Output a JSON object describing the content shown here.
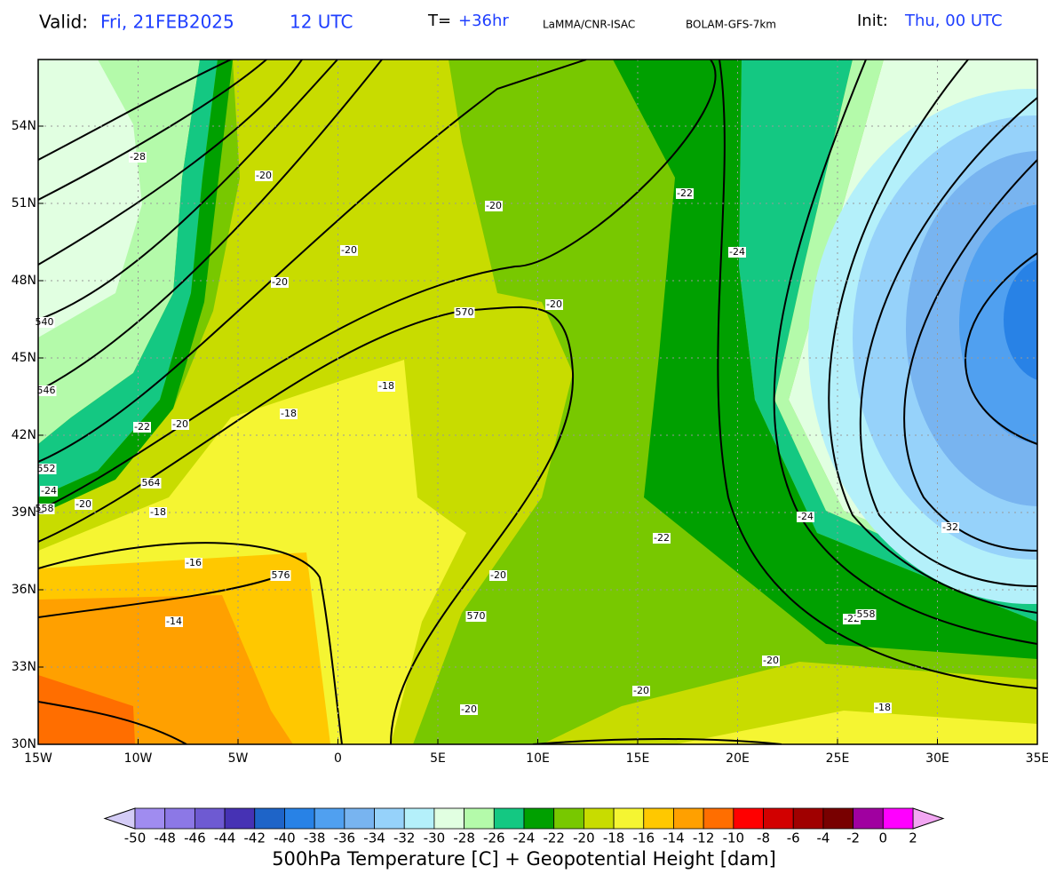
{
  "header": {
    "valid_label": "Valid:",
    "valid_value": "Fri, 21FEB2025",
    "valid_time": "12 UTC",
    "forecast_label": "T=",
    "forecast_value": "+36hr",
    "source": "LaMMA/CNR-ISAC",
    "model": "BOLAM-GFS-7km",
    "init_label": "Init:",
    "init_value": "Thu, 00 UTC"
  },
  "map": {
    "lat_labels": [
      "54N",
      "51N",
      "48N",
      "45N",
      "42N",
      "39N",
      "36N",
      "33N",
      "30N"
    ],
    "lon_labels": [
      "15W",
      "10W",
      "5W",
      "0",
      "5E",
      "10E",
      "15E",
      "20E",
      "25E",
      "30E",
      "35E"
    ],
    "temperature_labels": [
      "-28",
      "-20",
      "-20",
      "-22",
      "-20",
      "-24",
      "-20",
      "-20",
      "-18",
      "-18",
      "-22",
      "-20",
      "-24",
      "-20",
      "-18",
      "-16",
      "-24",
      "-22",
      "-20",
      "-32",
      "-14",
      "-22",
      "-20",
      "-20",
      "-20",
      "-18"
    ],
    "height_labels": [
      "540",
      "546",
      "552",
      "558",
      "564",
      "570",
      "570",
      "576",
      "558"
    ]
  },
  "colorbar": {
    "labels": [
      "-50",
      "-48",
      "-46",
      "-44",
      "-42",
      "-40",
      "-38",
      "-36",
      "-34",
      "-32",
      "-30",
      "-28",
      "-26",
      "-24",
      "-22",
      "-20",
      "-18",
      "-16",
      "-14",
      "-12",
      "-10",
      "-8",
      "-6",
      "-4",
      "-2",
      "0",
      "2"
    ],
    "low_color": "#d4ccf6",
    "high_color": "#f2a6f2",
    "colors": [
      "#a08cf0",
      "#8c78e6",
      "#6e5ad2",
      "#4632b4",
      "#1e64c8",
      "#2882e6",
      "#50a0f0",
      "#78b4f0",
      "#96d2fa",
      "#b4f0fa",
      "#e1ffe1",
      "#b4faaa",
      "#14c882",
      "#00a000",
      "#78c800",
      "#c8dc00",
      "#f5f532",
      "#ffc800",
      "#ffa000",
      "#ff6e00",
      "#ff0000",
      "#d20000",
      "#a00000",
      "#780000",
      "#a000a0",
      "#ff00ff"
    ],
    "title": "500hPa Temperature [C] + Geopotential Height [dam]"
  }
}
